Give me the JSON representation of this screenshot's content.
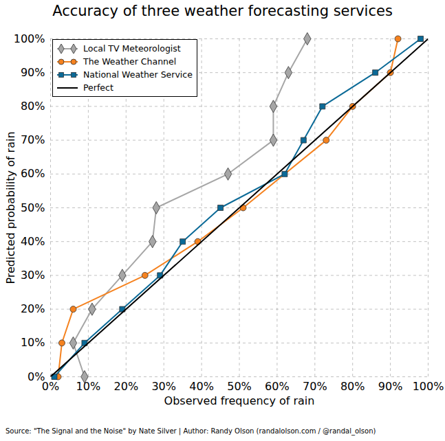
{
  "chart_data": {
    "type": "line",
    "title": "Accuracy of three weather forecasting services",
    "x_label": "Observed frequency of rain",
    "y_label": "Predicted probability of rain",
    "caption": "Source: \"The Signal and the Noise\" by Nate Silver | Author: Randy Olson (randalolson.com / @randal_olson)",
    "xlim": [
      0,
      100
    ],
    "ylim": [
      0,
      100
    ],
    "xticks": [
      {
        "value": 0,
        "label": "0%"
      },
      {
        "value": 10,
        "label": "10%"
      },
      {
        "value": 20,
        "label": "20%"
      },
      {
        "value": 30,
        "label": "30%"
      },
      {
        "value": 40,
        "label": "40%"
      },
      {
        "value": 50,
        "label": "50%"
      },
      {
        "value": 60,
        "label": "60%"
      },
      {
        "value": 70,
        "label": "70%"
      },
      {
        "value": 80,
        "label": "80%"
      },
      {
        "value": 90,
        "label": "90%"
      },
      {
        "value": 100,
        "label": "100%"
      }
    ],
    "yticks": [
      {
        "value": 0,
        "label": "0%"
      },
      {
        "value": 10,
        "label": "10%"
      },
      {
        "value": 20,
        "label": "20%"
      },
      {
        "value": 30,
        "label": "30%"
      },
      {
        "value": 40,
        "label": "40%"
      },
      {
        "value": 50,
        "label": "50%"
      },
      {
        "value": 60,
        "label": "60%"
      },
      {
        "value": 70,
        "label": "70%"
      },
      {
        "value": 80,
        "label": "80%"
      },
      {
        "value": 90,
        "label": "90%"
      },
      {
        "value": 100,
        "label": "100%"
      }
    ],
    "grid": true,
    "legend": "upper left",
    "series": [
      {
        "name": "Local TV Meteorologist",
        "color": "#a6a6a6",
        "marker": "diamond",
        "line_style": "solid",
        "x": [
          9,
          6,
          11,
          19,
          27,
          28,
          47,
          59,
          59,
          63,
          68
        ],
        "values": [
          0,
          10,
          20,
          30,
          40,
          50,
          60,
          70,
          80,
          90,
          100
        ]
      },
      {
        "name": "The Weather Channel",
        "color": "#f5821f",
        "marker": "circle",
        "line_style": "solid",
        "x": [
          2,
          3,
          6,
          25,
          39,
          51,
          73,
          80,
          90,
          92
        ],
        "values": [
          0,
          10,
          20,
          30,
          40,
          50,
          70,
          80,
          90,
          100
        ]
      },
      {
        "name": "National Weather Service",
        "color": "#0b6a97",
        "marker": "square",
        "line_style": "solid",
        "x": [
          1,
          9,
          19,
          29,
          35,
          45,
          62,
          67,
          72,
          86,
          98
        ],
        "values": [
          0,
          10,
          20,
          30,
          40,
          50,
          60,
          70,
          80,
          90,
          100
        ]
      },
      {
        "name": "Perfect",
        "color": "#000000",
        "marker": "none",
        "line_style": "solid",
        "x": [
          0,
          100
        ],
        "values": [
          0,
          100
        ]
      }
    ]
  }
}
